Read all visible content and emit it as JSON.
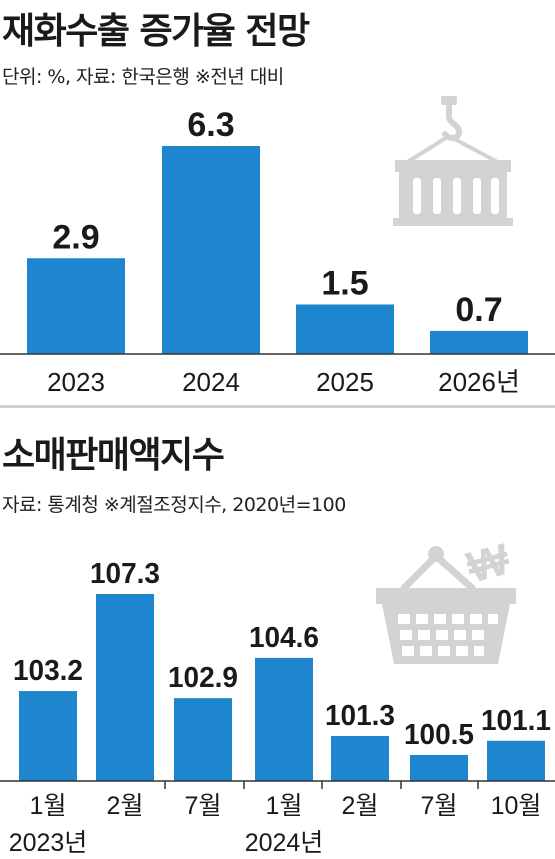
{
  "colors": {
    "bar": "#1d86cf",
    "icon": "#d3d3d3",
    "divider": "#cfcfcf"
  },
  "icons": [
    "container-icon",
    "shopping-basket-icon"
  ],
  "chart_data": [
    {
      "type": "bar",
      "title": "재화수출 증가율 전망",
      "subtitle": "단위: %, 자료: 한국은행 ※전년 대비",
      "categories": [
        "2023",
        "2024",
        "2025",
        "2026년"
      ],
      "values": [
        2.9,
        6.3,
        1.5,
        0.7
      ],
      "value_labels": [
        "2.9",
        "6.3",
        "1.5",
        "0.7"
      ],
      "ylim": [
        0,
        7
      ]
    },
    {
      "type": "bar",
      "title": "소매판매액지수",
      "subtitle": "자료: 통계청 ※계절조정지수, 2020년=100",
      "categories": [
        "1월",
        "2월",
        "7월",
        "1월",
        "2월",
        "7월",
        "10월"
      ],
      "year_labels": [
        "2023년",
        "",
        "",
        "2024년",
        "",
        "",
        ""
      ],
      "values": [
        103.2,
        107.3,
        102.9,
        104.6,
        101.3,
        100.5,
        101.1
      ],
      "value_labels": [
        "103.2",
        "107.3",
        "102.9",
        "104.6",
        "101.3",
        "100.5",
        "101.1"
      ],
      "ylim": [
        99.4,
        107.3
      ]
    }
  ]
}
